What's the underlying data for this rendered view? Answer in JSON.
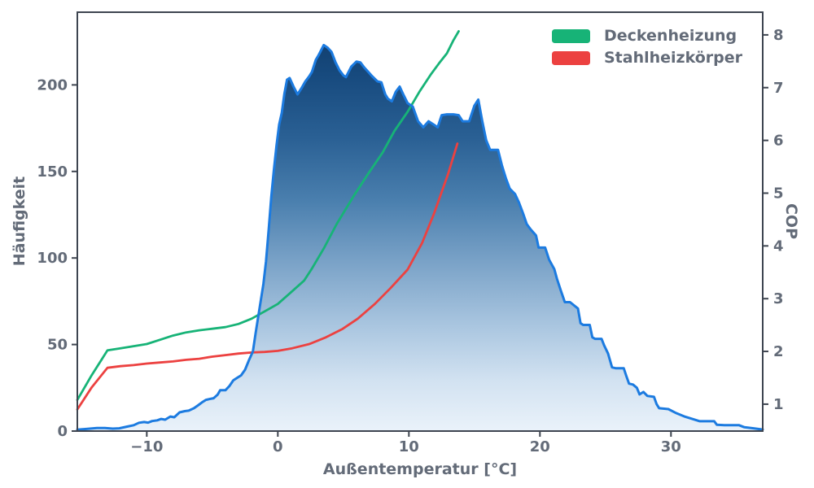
{
  "figure": {
    "xlabel": "Außentemperatur [°C]",
    "ylabel_left": "Häufigkeit",
    "ylabel_right": "COP",
    "legend": [
      {
        "label": "Deckenheizung",
        "color": "#17b377"
      },
      {
        "label": "Stahlheizkörper",
        "color": "#ec4140"
      }
    ]
  },
  "colors": {
    "background": "#ffffff",
    "hist_line": "#1c7be0",
    "hist_gradient_stops": [
      "#0e3765",
      "#174a7e",
      "#2a6094",
      "#4a7fae",
      "#7ba3c8",
      "#aac6e0",
      "#d2e2f1",
      "#eaf2fa"
    ],
    "green_line": "#17b377",
    "red_line": "#ec4140",
    "spine": "#3e4550",
    "text": "#636b78"
  },
  "chart_data": {
    "type": "area",
    "title": "",
    "xlabel": "Außentemperatur [°C]",
    "x_range": [
      -15.3,
      37.0
    ],
    "x_ticks": [
      -10,
      0,
      10,
      20,
      30
    ],
    "x_tick_labels": [
      "−10",
      "0",
      "10",
      "20",
      "30"
    ],
    "left_axis": {
      "label": "Häufigkeit",
      "range": [
        0,
        242
      ],
      "ticks": [
        0,
        50,
        100,
        150,
        200
      ]
    },
    "right_axis": {
      "label": "COP",
      "range": [
        0.49,
        8.43
      ],
      "ticks": [
        1,
        2,
        3,
        4,
        5,
        6,
        7,
        8
      ]
    },
    "grid": false,
    "legend_position": "upper right",
    "histogram": {
      "name": "Häufigkeit",
      "axis": "left",
      "style": "filled area, bright blue outline, vertical gradient dark-top to light-bottom",
      "points": [
        [
          -15.3,
          0.8
        ],
        [
          -14.6,
          1.2
        ],
        [
          -13.8,
          1.8
        ],
        [
          -13.2,
          1.8
        ],
        [
          -12.6,
          1.4
        ],
        [
          -12.1,
          1.6
        ],
        [
          -11.5,
          2.6
        ],
        [
          -11.0,
          3.4
        ],
        [
          -10.6,
          4.8
        ],
        [
          -10.2,
          5.2
        ],
        [
          -9.9,
          4.9
        ],
        [
          -9.6,
          5.8
        ],
        [
          -9.2,
          6.2
        ],
        [
          -8.9,
          7.0
        ],
        [
          -8.6,
          6.6
        ],
        [
          -8.2,
          8.4
        ],
        [
          -7.9,
          8.0
        ],
        [
          -7.5,
          10.8
        ],
        [
          -7.1,
          11.5
        ],
        [
          -6.8,
          11.8
        ],
        [
          -6.4,
          13.2
        ],
        [
          -6.1,
          14.8
        ],
        [
          -5.8,
          16.5
        ],
        [
          -5.5,
          18.0
        ],
        [
          -5.2,
          18.5
        ],
        [
          -4.9,
          19.0
        ],
        [
          -4.6,
          21.0
        ],
        [
          -4.4,
          23.6
        ],
        [
          -4.0,
          23.6
        ],
        [
          -3.7,
          26.0
        ],
        [
          -3.4,
          29.3
        ],
        [
          -3.1,
          30.8
        ],
        [
          -2.8,
          32.2
        ],
        [
          -2.5,
          35.5
        ],
        [
          -2.2,
          41.0
        ],
        [
          -1.9,
          46.0
        ],
        [
          -1.7,
          56.5
        ],
        [
          -1.5,
          66.0
        ],
        [
          -1.3,
          75.5
        ],
        [
          -1.1,
          85.0
        ],
        [
          -0.9,
          98.0
        ],
        [
          -0.7,
          116.5
        ],
        [
          -0.5,
          135.5
        ],
        [
          -0.3,
          151.0
        ],
        [
          -0.1,
          165.0
        ],
        [
          0.1,
          177.0
        ],
        [
          0.3,
          184.0
        ],
        [
          0.5,
          195.0
        ],
        [
          0.7,
          203.0
        ],
        [
          0.9,
          204.0
        ],
        [
          1.2,
          199.0
        ],
        [
          1.5,
          194.5
        ],
        [
          1.8,
          198.0
        ],
        [
          2.1,
          202.0
        ],
        [
          2.4,
          205.0
        ],
        [
          2.6,
          207.5
        ],
        [
          2.9,
          214.5
        ],
        [
          3.1,
          217.0
        ],
        [
          3.5,
          223.0
        ],
        [
          3.8,
          221.5
        ],
        [
          4.1,
          219.0
        ],
        [
          4.4,
          213.0
        ],
        [
          4.7,
          208.5
        ],
        [
          5.0,
          205.5
        ],
        [
          5.2,
          204.5
        ],
        [
          5.6,
          210.5
        ],
        [
          6.0,
          213.5
        ],
        [
          6.3,
          213.0
        ],
        [
          6.6,
          210.0
        ],
        [
          6.9,
          207.5
        ],
        [
          7.2,
          205.0
        ],
        [
          7.6,
          202.0
        ],
        [
          7.9,
          201.5
        ],
        [
          8.2,
          194.5
        ],
        [
          8.4,
          192.0
        ],
        [
          8.7,
          190.5
        ],
        [
          9.0,
          196.0
        ],
        [
          9.3,
          199.0
        ],
        [
          9.6,
          194.0
        ],
        [
          9.9,
          189.5
        ],
        [
          10.3,
          187.5
        ],
        [
          10.7,
          179.0
        ],
        [
          11.1,
          175.5
        ],
        [
          11.5,
          179.0
        ],
        [
          11.9,
          177.0
        ],
        [
          12.2,
          175.5
        ],
        [
          12.5,
          182.5
        ],
        [
          12.9,
          183.0
        ],
        [
          13.4,
          183.0
        ],
        [
          13.8,
          182.5
        ],
        [
          14.1,
          179.0
        ],
        [
          14.6,
          179.0
        ],
        [
          15.0,
          188.0
        ],
        [
          15.3,
          191.5
        ],
        [
          15.6,
          179.0
        ],
        [
          15.9,
          168.0
        ],
        [
          16.2,
          162.5
        ],
        [
          16.8,
          162.5
        ],
        [
          17.1,
          153.5
        ],
        [
          17.4,
          146.0
        ],
        [
          17.7,
          140.0
        ],
        [
          18.1,
          137.0
        ],
        [
          18.4,
          132.0
        ],
        [
          18.7,
          126.0
        ],
        [
          19.0,
          119.5
        ],
        [
          19.3,
          116.5
        ],
        [
          19.7,
          113.0
        ],
        [
          19.9,
          106.0
        ],
        [
          20.4,
          106.0
        ],
        [
          20.7,
          99.0
        ],
        [
          21.1,
          93.5
        ],
        [
          21.3,
          88.0
        ],
        [
          21.6,
          81.0
        ],
        [
          21.9,
          74.5
        ],
        [
          22.3,
          74.5
        ],
        [
          22.9,
          70.8
        ],
        [
          23.1,
          62.3
        ],
        [
          23.3,
          61.3
        ],
        [
          23.8,
          61.3
        ],
        [
          24.0,
          54.2
        ],
        [
          24.2,
          53.3
        ],
        [
          24.7,
          53.3
        ],
        [
          24.9,
          49.5
        ],
        [
          25.2,
          44.8
        ],
        [
          25.5,
          36.8
        ],
        [
          25.8,
          36.3
        ],
        [
          26.4,
          36.3
        ],
        [
          26.6,
          31.6
        ],
        [
          26.8,
          27.4
        ],
        [
          27.1,
          26.9
        ],
        [
          27.4,
          25.0
        ],
        [
          27.6,
          21.2
        ],
        [
          27.9,
          22.6
        ],
        [
          28.2,
          20.3
        ],
        [
          28.7,
          19.8
        ],
        [
          28.9,
          15.6
        ],
        [
          29.1,
          13.2
        ],
        [
          29.8,
          12.7
        ],
        [
          30.4,
          10.4
        ],
        [
          31.0,
          8.5
        ],
        [
          31.6,
          7.1
        ],
        [
          32.2,
          5.7
        ],
        [
          33.3,
          5.7
        ],
        [
          33.5,
          3.6
        ],
        [
          34.1,
          3.4
        ],
        [
          35.2,
          3.4
        ],
        [
          35.6,
          2.2
        ],
        [
          36.3,
          1.6
        ],
        [
          37.0,
          0.9
        ]
      ]
    },
    "series": [
      {
        "name": "Deckenheizung",
        "axis": "right",
        "color": "#17b377",
        "points": [
          [
            -15.3,
            1.08
          ],
          [
            -14.2,
            1.55
          ],
          [
            -13.0,
            2.02
          ],
          [
            -12.0,
            2.06
          ],
          [
            -11.0,
            2.1
          ],
          [
            -10.0,
            2.14
          ],
          [
            -9.0,
            2.22
          ],
          [
            -8.0,
            2.3
          ],
          [
            -7.0,
            2.36
          ],
          [
            -6.0,
            2.4
          ],
          [
            -5.0,
            2.43
          ],
          [
            -4.0,
            2.46
          ],
          [
            -3.0,
            2.52
          ],
          [
            -2.0,
            2.62
          ],
          [
            -1.0,
            2.76
          ],
          [
            0.0,
            2.9
          ],
          [
            1.0,
            3.12
          ],
          [
            2.0,
            3.34
          ],
          [
            2.6,
            3.57
          ],
          [
            3.5,
            3.95
          ],
          [
            4.5,
            4.42
          ],
          [
            5.8,
            4.95
          ],
          [
            6.9,
            5.37
          ],
          [
            8.0,
            5.77
          ],
          [
            8.9,
            6.18
          ],
          [
            9.9,
            6.54
          ],
          [
            10.8,
            6.92
          ],
          [
            11.7,
            7.26
          ],
          [
            12.3,
            7.46
          ],
          [
            12.9,
            7.65
          ],
          [
            13.4,
            7.9
          ],
          [
            13.8,
            8.07
          ]
        ]
      },
      {
        "name": "Stahlheizkörper",
        "axis": "right",
        "color": "#ec4140",
        "points": [
          [
            -15.3,
            0.9
          ],
          [
            -14.2,
            1.32
          ],
          [
            -13.0,
            1.69
          ],
          [
            -12.0,
            1.72
          ],
          [
            -11.0,
            1.74
          ],
          [
            -10.0,
            1.77
          ],
          [
            -9.0,
            1.79
          ],
          [
            -8.0,
            1.81
          ],
          [
            -7.0,
            1.84
          ],
          [
            -6.0,
            1.86
          ],
          [
            -5.0,
            1.9
          ],
          [
            -4.0,
            1.93
          ],
          [
            -3.0,
            1.96
          ],
          [
            -2.0,
            1.98
          ],
          [
            -1.0,
            1.99
          ],
          [
            0.0,
            2.01
          ],
          [
            1.1,
            2.06
          ],
          [
            2.4,
            2.14
          ],
          [
            3.6,
            2.26
          ],
          [
            4.9,
            2.42
          ],
          [
            6.1,
            2.62
          ],
          [
            7.4,
            2.9
          ],
          [
            8.6,
            3.2
          ],
          [
            9.9,
            3.55
          ],
          [
            11.0,
            4.05
          ],
          [
            11.9,
            4.6
          ],
          [
            13.0,
            5.37
          ],
          [
            13.7,
            5.94
          ]
        ]
      }
    ]
  }
}
